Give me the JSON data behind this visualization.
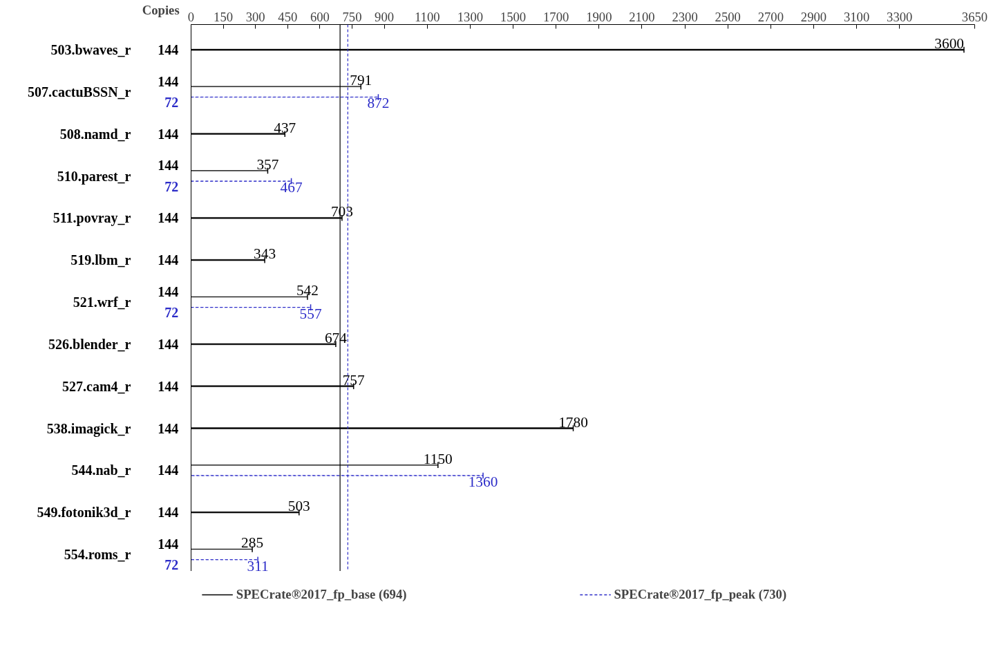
{
  "chart_data": {
    "type": "bar",
    "orientation": "horizontal",
    "categories": [
      "503.bwaves_r",
      "507.cactuBSSN_r",
      "508.namd_r",
      "510.parest_r",
      "511.povray_r",
      "519.lbm_r",
      "521.wrf_r",
      "526.blender_r",
      "527.cam4_r",
      "538.imagick_r",
      "544.nab_r",
      "549.fotonik3d_r",
      "554.roms_r"
    ],
    "series": [
      {
        "name": "SPECrate®2017_fp_base (694)",
        "color": "#000000",
        "values": [
          3600,
          791,
          437,
          357,
          703,
          343,
          542,
          674,
          757,
          1780,
          1150,
          503,
          285
        ]
      },
      {
        "name": "SPECrate®2017_fp_peak (730)",
        "color": "#2b2bc8",
        "line_style": "dashed",
        "values": [
          null,
          872,
          null,
          467,
          null,
          null,
          557,
          null,
          null,
          null,
          1360,
          null,
          311
        ]
      }
    ],
    "data_labels": true,
    "xlim": [
      0,
      3650
    ],
    "xticks": [
      0,
      150,
      300,
      450,
      600,
      750,
      900,
      1100,
      1300,
      1500,
      1700,
      1900,
      2100,
      2300,
      2500,
      2700,
      2900,
      3100,
      3300,
      3650
    ],
    "ref_lines": [
      {
        "axis": "x",
        "value": 694,
        "color": "#000000",
        "line_style": "solid"
      },
      {
        "axis": "x",
        "value": 730,
        "color": "#2b2bc8",
        "line_style": "dashed"
      }
    ],
    "annotations": [
      "Copies",
      "144",
      "144\n72",
      "144",
      "144\n72",
      "144",
      "144",
      "144\n72",
      "144",
      "144",
      "144",
      "144",
      "144",
      "144\n72"
    ],
    "grid": false,
    "legend": "bottom"
  }
}
